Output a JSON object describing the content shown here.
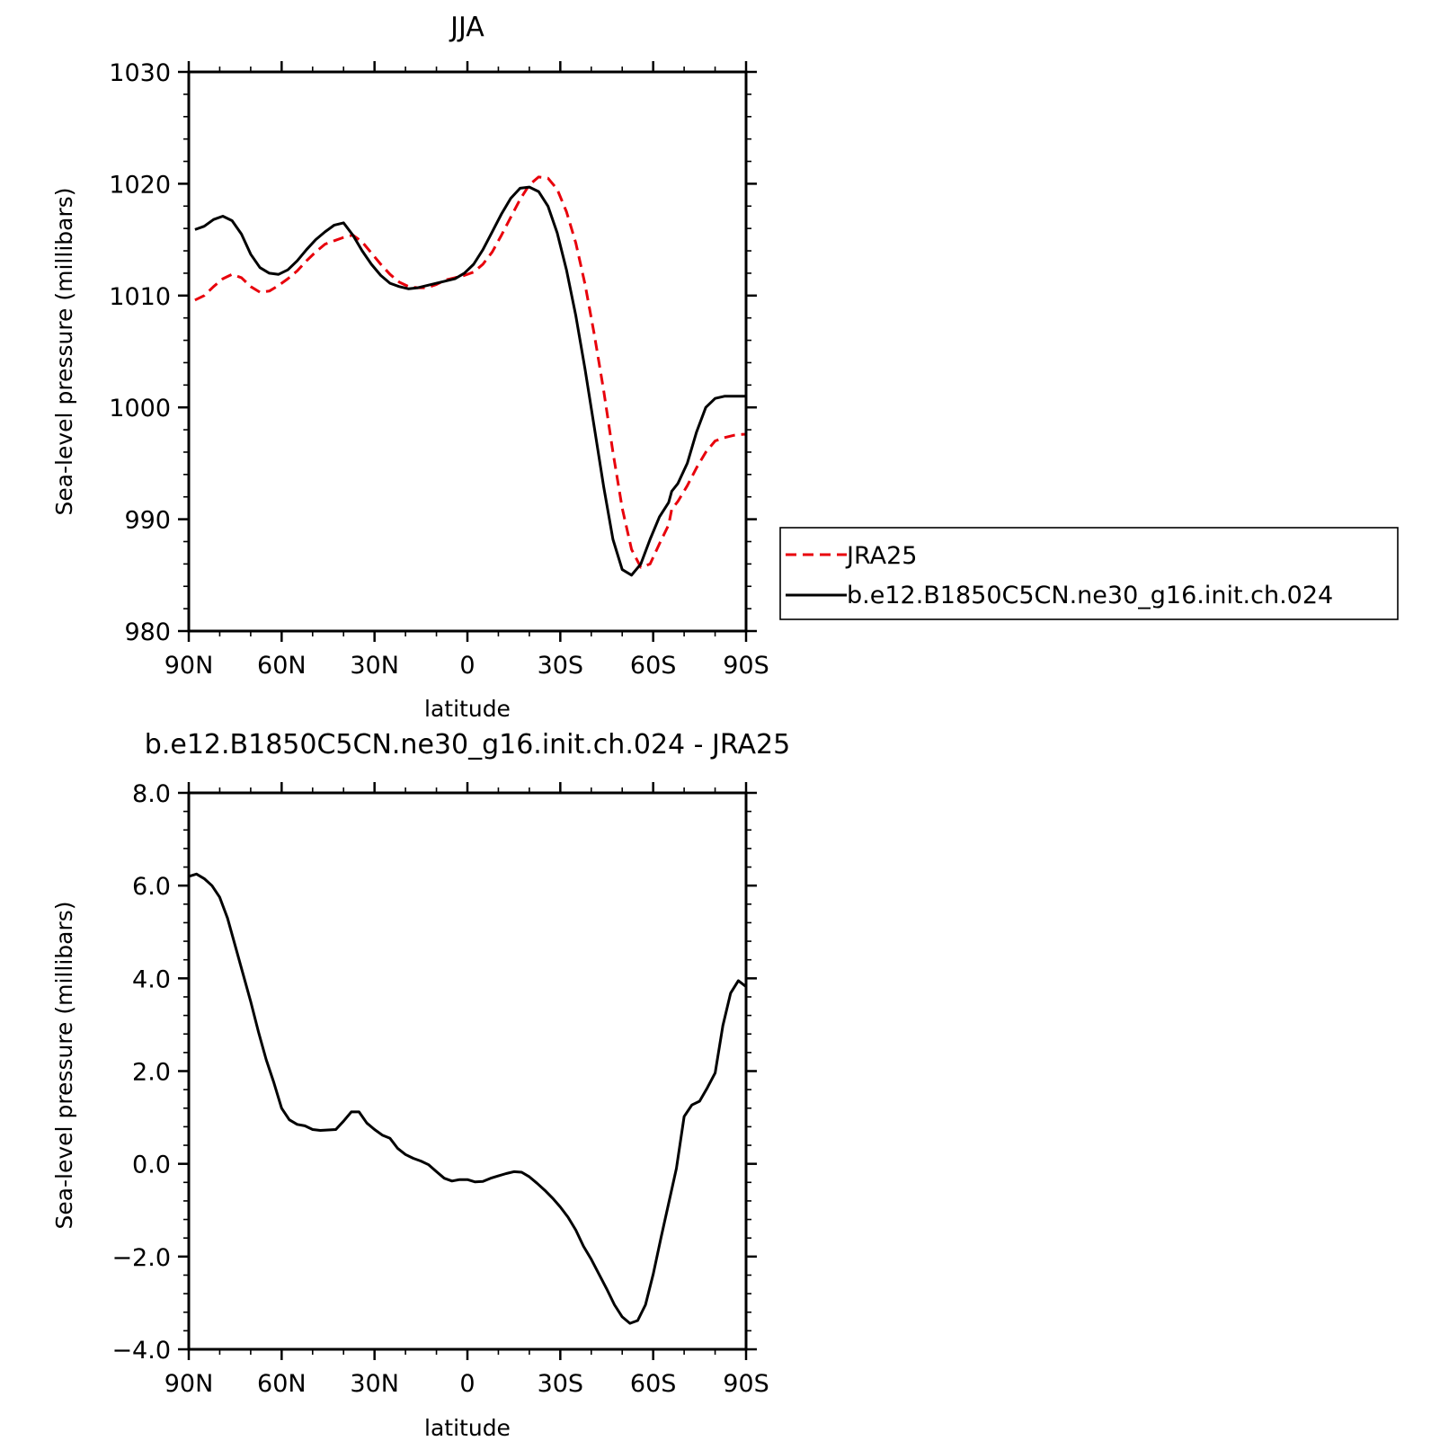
{
  "chart_data": [
    {
      "type": "line",
      "title": "JJA",
      "xlabel": "latitude",
      "ylabel": "Sea-level pressure (millibars)",
      "ylim": [
        980,
        1030
      ],
      "xlim": [
        -90,
        90
      ],
      "x_ticks": [
        {
          "value": -90,
          "label": "90N"
        },
        {
          "value": -60,
          "label": "60N"
        },
        {
          "value": -30,
          "label": "30N"
        },
        {
          "value": 0,
          "label": "0"
        },
        {
          "value": 30,
          "label": "30S"
        },
        {
          "value": 60,
          "label": "60S"
        },
        {
          "value": 90,
          "label": "90S"
        }
      ],
      "y_ticks": [
        {
          "value": 980,
          "label": "980"
        },
        {
          "value": 990,
          "label": "990"
        },
        {
          "value": 1000,
          "label": "1000"
        },
        {
          "value": 1010,
          "label": "1010"
        },
        {
          "value": 1020,
          "label": "1020"
        },
        {
          "value": 1030,
          "label": "1030"
        }
      ],
      "legend_position": "right",
      "series": [
        {
          "name": "JRA25",
          "color": "#e8000b",
          "dash": "dashed",
          "x": [
            -88,
            -85,
            -82,
            -79,
            -76,
            -73,
            -70,
            -67,
            -64,
            -61,
            -58,
            -55,
            -52,
            -49,
            -46,
            -43,
            -40,
            -37,
            -34,
            -31,
            -28,
            -25,
            -22,
            -19,
            -16,
            -13,
            -10,
            -7,
            -4,
            -1,
            2,
            5,
            8,
            11,
            14,
            17,
            20,
            23,
            26,
            29,
            32,
            35,
            38,
            41,
            44,
            47,
            50,
            53,
            56,
            59,
            62,
            65,
            66,
            68,
            71,
            74,
            77,
            80,
            83,
            86,
            89,
            90
          ],
          "y": [
            1009.6,
            1010.0,
            1010.8,
            1011.5,
            1011.9,
            1011.6,
            1010.8,
            1010.3,
            1010.4,
            1010.9,
            1011.5,
            1012.2,
            1013.1,
            1013.9,
            1014.6,
            1014.9,
            1015.2,
            1015.4,
            1014.8,
            1013.8,
            1012.8,
            1011.9,
            1011.2,
            1010.8,
            1010.7,
            1010.7,
            1011.0,
            1011.4,
            1011.6,
            1011.8,
            1012.1,
            1012.8,
            1013.9,
            1015.4,
            1017.0,
            1018.6,
            1019.9,
            1020.6,
            1020.5,
            1019.5,
            1017.5,
            1014.7,
            1011.0,
            1006.5,
            1001.5,
            996.0,
            991.0,
            987.3,
            985.7,
            986.0,
            987.8,
            989.5,
            990.9,
            991.6,
            993.0,
            994.6,
            996.0,
            997.0,
            997.3,
            997.5,
            997.6,
            997.6
          ]
        },
        {
          "name": "b.e12.B1850C5CN.ne30_g16.init.ch.024",
          "color": "#000000",
          "dash": "solid",
          "x": [
            -88,
            -85,
            -82,
            -79,
            -76,
            -73,
            -70,
            -67,
            -64,
            -61,
            -58,
            -55,
            -52,
            -49,
            -46,
            -43,
            -40,
            -37,
            -34,
            -31,
            -28,
            -25,
            -22,
            -19,
            -16,
            -13,
            -10,
            -7,
            -4,
            -1,
            2,
            5,
            8,
            11,
            14,
            17,
            20,
            23,
            26,
            29,
            32,
            35,
            38,
            41,
            44,
            47,
            50,
            53,
            56,
            59,
            62,
            65,
            66,
            68,
            71,
            74,
            77,
            80,
            83,
            86,
            89,
            90
          ],
          "y": [
            1015.9,
            1016.2,
            1016.8,
            1017.1,
            1016.7,
            1015.5,
            1013.7,
            1012.5,
            1012.0,
            1011.9,
            1012.3,
            1013.1,
            1014.1,
            1015.0,
            1015.7,
            1016.3,
            1016.5,
            1015.4,
            1014.0,
            1012.8,
            1011.8,
            1011.1,
            1010.8,
            1010.6,
            1010.7,
            1010.9,
            1011.1,
            1011.3,
            1011.5,
            1012.0,
            1012.8,
            1014.1,
            1015.7,
            1017.3,
            1018.7,
            1019.6,
            1019.7,
            1019.3,
            1018.0,
            1015.6,
            1012.3,
            1008.2,
            1003.4,
            998.2,
            992.9,
            988.2,
            985.5,
            985.0,
            986.0,
            988.2,
            990.2,
            991.5,
            992.5,
            993.2,
            995.0,
            997.8,
            1000.0,
            1000.8,
            1001.0,
            1001.0,
            1001.0,
            1001.0
          ]
        }
      ]
    },
    {
      "type": "line",
      "title": "b.e12.B1850C5CN.ne30_g16.init.ch.024 - JRA25",
      "xlabel": "latitude",
      "ylabel": "Sea-level pressure (millibars)",
      "ylim": [
        -4.0,
        8.0
      ],
      "xlim": [
        -90,
        90
      ],
      "x_ticks": [
        {
          "value": -90,
          "label": "90N"
        },
        {
          "value": -60,
          "label": "60N"
        },
        {
          "value": -30,
          "label": "30N"
        },
        {
          "value": 0,
          "label": "0"
        },
        {
          "value": 30,
          "label": "30S"
        },
        {
          "value": 60,
          "label": "60S"
        },
        {
          "value": 90,
          "label": "90S"
        }
      ],
      "y_ticks": [
        {
          "value": -4,
          "label": "−4.0"
        },
        {
          "value": -2,
          "label": "−2.0"
        },
        {
          "value": 0,
          "label": "0.0"
        },
        {
          "value": 2,
          "label": "2.0"
        },
        {
          "value": 4,
          "label": "4.0"
        },
        {
          "value": 6,
          "label": "6.0"
        },
        {
          "value": 8,
          "label": "8.0"
        }
      ],
      "series": [
        {
          "color": "#000000",
          "dash": "solid",
          "x": [
            -90,
            -87.5,
            -85,
            -82.5,
            -80,
            -77.5,
            -75,
            -72.5,
            -70,
            -67.5,
            -65,
            -62.5,
            -60,
            -57.5,
            -55,
            -52.5,
            -50,
            -47.5,
            -45,
            -42.5,
            -40,
            -37.5,
            -35,
            -32.5,
            -30,
            -27.5,
            -25,
            -22.5,
            -20,
            -17.5,
            -15,
            -12.5,
            -10,
            -7.5,
            -5,
            -2.5,
            0,
            2.5,
            5,
            7.5,
            10,
            12.5,
            15,
            17.5,
            20,
            22.5,
            25,
            27.5,
            30,
            32.5,
            35,
            37.5,
            40,
            42.5,
            45,
            47.5,
            50,
            52.5,
            55,
            57.5,
            60,
            62.5,
            65,
            67.5,
            70,
            72.5,
            75,
            77.5,
            80,
            82.5,
            85,
            87.5,
            90
          ],
          "y": [
            6.2,
            6.25,
            6.15,
            6.0,
            5.75,
            5.3,
            4.7,
            4.1,
            3.5,
            2.85,
            2.25,
            1.75,
            1.2,
            0.95,
            0.85,
            0.82,
            0.74,
            0.72,
            0.73,
            0.74,
            0.92,
            1.12,
            1.12,
            0.88,
            0.74,
            0.62,
            0.55,
            0.33,
            0.2,
            0.12,
            0.06,
            -0.02,
            -0.17,
            -0.31,
            -0.37,
            -0.34,
            -0.34,
            -0.39,
            -0.38,
            -0.31,
            -0.26,
            -0.21,
            -0.17,
            -0.18,
            -0.28,
            -0.42,
            -0.57,
            -0.74,
            -0.93,
            -1.15,
            -1.43,
            -1.78,
            -2.06,
            -2.38,
            -2.7,
            -3.04,
            -3.3,
            -3.44,
            -3.38,
            -3.04,
            -2.38,
            -1.6,
            -0.85,
            -0.1,
            1.02,
            1.27,
            1.35,
            1.64,
            1.96,
            2.98,
            3.68,
            3.95,
            3.82
          ]
        }
      ]
    }
  ]
}
